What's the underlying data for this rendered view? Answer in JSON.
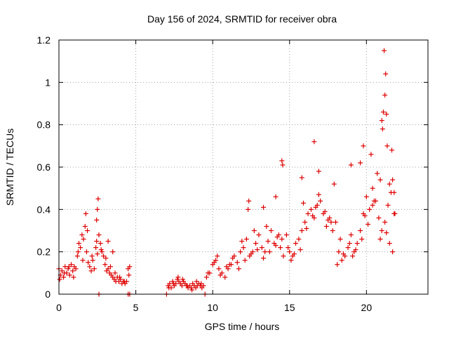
{
  "chart_data": {
    "type": "scatter",
    "title": "Day 156 of 2024, SRMTID for receiver obra",
    "xlabel": "GPS time / hours",
    "ylabel": "SRMTID / TECUs",
    "xlim": [
      0,
      24
    ],
    "ylim": [
      0,
      1.2
    ],
    "xticks": [
      0,
      5,
      10,
      15,
      20
    ],
    "xtick_labels": [
      "0",
      "5",
      "10",
      "15",
      "20"
    ],
    "yticks": [
      0,
      0.2,
      0.4,
      0.6,
      0.8,
      1,
      1.2
    ],
    "ytick_labels": [
      "0",
      "0.2",
      "0.4",
      "0.6",
      "0.8",
      "1",
      "1.2"
    ],
    "grid": true,
    "marker": "plus",
    "color": "#dd0000",
    "series": [
      {
        "name": "SRMTID",
        "x": [
          0.0,
          0.1,
          0.2,
          0.3,
          0.4,
          0.5,
          0.6,
          0.7,
          0.8,
          0.9,
          1.0,
          1.1,
          1.2,
          1.3,
          1.4,
          1.5,
          1.6,
          1.7,
          1.8,
          1.9,
          2.0,
          2.1,
          2.2,
          2.3,
          2.4,
          2.5,
          2.6,
          2.7,
          2.8,
          2.9,
          3.0,
          3.1,
          3.2,
          3.3,
          3.4,
          3.5,
          3.6,
          3.7,
          3.8,
          3.9,
          4.0,
          4.1,
          4.2,
          4.3,
          4.4,
          4.5,
          4.6,
          0.05,
          0.35,
          0.65,
          0.95,
          1.25,
          1.55,
          1.85,
          2.15,
          2.45,
          2.75,
          3.05,
          3.35,
          3.65,
          3.95,
          4.25,
          4.55,
          1.75,
          2.45,
          2.5,
          2.55,
          3.2,
          3.5,
          2.6,
          4.5,
          4.6,
          7.1,
          7.2,
          7.3,
          7.4,
          7.5,
          7.6,
          7.7,
          7.8,
          7.9,
          8.0,
          8.1,
          8.2,
          8.3,
          8.4,
          8.5,
          8.6,
          8.7,
          8.8,
          8.9,
          9.0,
          9.1,
          9.2,
          9.3,
          9.4,
          7.15,
          7.45,
          7.75,
          8.05,
          8.35,
          8.65,
          8.95,
          9.25,
          7.0,
          9.5,
          9.6,
          9.8,
          10.0,
          10.2,
          10.4,
          10.6,
          10.8,
          11.0,
          11.2,
          11.4,
          11.6,
          11.8,
          12.0,
          12.2,
          12.4,
          12.6,
          12.8,
          13.0,
          13.2,
          13.4,
          13.6,
          13.8,
          14.0,
          14.2,
          14.4,
          14.6,
          14.8,
          15.0,
          15.2,
          15.4,
          15.6,
          15.8,
          16.0,
          16.2,
          16.4,
          16.6,
          16.8,
          17.0,
          17.2,
          17.4,
          17.6,
          17.8,
          18.0,
          18.2,
          18.4,
          18.6,
          18.8,
          19.0,
          19.2,
          19.4,
          19.6,
          19.8,
          20.0,
          20.2,
          20.4,
          20.6,
          20.8,
          21.0,
          21.2,
          21.4,
          21.6,
          21.8,
          9.7,
          10.1,
          10.5,
          10.9,
          11.3,
          11.7,
          12.1,
          12.5,
          12.9,
          13.3,
          13.7,
          14.1,
          14.5,
          14.9,
          15.3,
          15.7,
          16.1,
          16.5,
          16.9,
          17.3,
          17.7,
          18.1,
          18.5,
          18.9,
          19.3,
          19.7,
          20.1,
          20.5,
          20.9,
          21.3,
          21.7,
          10.3,
          11.1,
          11.9,
          12.7,
          13.5,
          14.3,
          15.1,
          15.9,
          16.7,
          17.5,
          18.3,
          19.1,
          19.9,
          20.7,
          21.5,
          12.3,
          12.35,
          13.3,
          14.1,
          14.5,
          14.55,
          15.8,
          16.6,
          16.9,
          17.9,
          19.0,
          19.6,
          19.8,
          20.3,
          20.4,
          20.9,
          21.0,
          21.05,
          21.1,
          21.15,
          21.2,
          21.25,
          21.3,
          21.35,
          21.5,
          21.65,
          21.7,
          21.8,
          21.85
        ],
        "y": [
          0.12,
          0.09,
          0.11,
          0.08,
          0.13,
          0.1,
          0.12,
          0.09,
          0.14,
          0.11,
          0.13,
          0.12,
          0.18,
          0.24,
          0.22,
          0.28,
          0.26,
          0.32,
          0.2,
          0.15,
          0.13,
          0.11,
          0.16,
          0.12,
          0.22,
          0.19,
          0.28,
          0.24,
          0.2,
          0.18,
          0.14,
          0.11,
          0.12,
          0.1,
          0.09,
          0.08,
          0.07,
          0.06,
          0.08,
          0.06,
          0.07,
          0.05,
          0.06,
          0.05,
          0.06,
          0.12,
          0.13,
          0.07,
          0.1,
          0.13,
          0.08,
          0.2,
          0.16,
          0.3,
          0.18,
          0.25,
          0.21,
          0.17,
          0.13,
          0.1,
          0.08,
          0.06,
          0.09,
          0.38,
          0.35,
          0.4,
          0.45,
          0.25,
          0.2,
          0.0,
          0.0,
          0.0,
          0.04,
          0.05,
          0.03,
          0.06,
          0.04,
          0.05,
          0.07,
          0.06,
          0.05,
          0.04,
          0.06,
          0.05,
          0.04,
          0.03,
          0.04,
          0.03,
          0.05,
          0.04,
          0.03,
          0.04,
          0.05,
          0.04,
          0.03,
          0.04,
          0.03,
          0.05,
          0.08,
          0.07,
          0.04,
          0.02,
          0.06,
          0.05,
          0.0,
          0.0,
          0.08,
          0.1,
          0.14,
          0.16,
          0.12,
          0.1,
          0.08,
          0.12,
          0.14,
          0.18,
          0.15,
          0.2,
          0.22,
          0.26,
          0.18,
          0.2,
          0.24,
          0.28,
          0.22,
          0.2,
          0.25,
          0.3,
          0.24,
          0.27,
          0.22,
          0.18,
          0.28,
          0.2,
          0.18,
          0.24,
          0.26,
          0.3,
          0.34,
          0.38,
          0.4,
          0.36,
          0.42,
          0.44,
          0.38,
          0.32,
          0.36,
          0.3,
          0.34,
          0.2,
          0.16,
          0.18,
          0.22,
          0.28,
          0.2,
          0.24,
          0.3,
          0.38,
          0.46,
          0.4,
          0.5,
          0.44,
          0.36,
          0.3,
          0.34,
          0.42,
          0.48,
          0.38,
          0.1,
          0.15,
          0.09,
          0.13,
          0.17,
          0.12,
          0.16,
          0.19,
          0.21,
          0.17,
          0.2,
          0.23,
          0.26,
          0.22,
          0.19,
          0.21,
          0.31,
          0.37,
          0.47,
          0.39,
          0.34,
          0.14,
          0.19,
          0.24,
          0.21,
          0.26,
          0.33,
          0.44,
          0.26,
          0.29,
          0.2,
          0.18,
          0.14,
          0.25,
          0.3,
          0.32,
          0.28,
          0.16,
          0.43,
          0.41,
          0.35,
          0.26,
          0.18,
          0.37,
          0.57,
          0.52,
          0.4,
          0.44,
          0.41,
          0.46,
          0.63,
          0.61,
          0.55,
          0.72,
          0.58,
          0.52,
          0.61,
          0.62,
          0.7,
          0.66,
          0.42,
          0.54,
          0.82,
          0.78,
          0.86,
          1.15,
          0.94,
          1.04,
          0.85,
          0.7,
          0.24,
          0.68,
          0.54,
          0.48,
          0.38
        ]
      }
    ]
  }
}
